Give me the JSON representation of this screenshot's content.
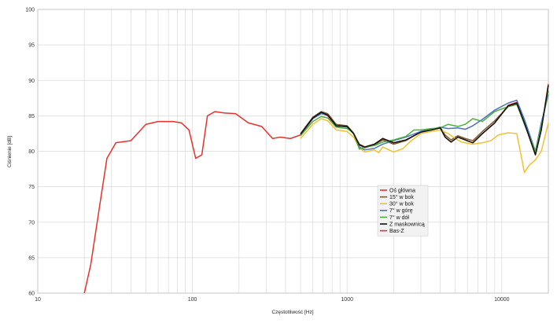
{
  "chart_data": {
    "type": "line",
    "xlabel": "Częstotliwość [Hz]",
    "ylabel": "Ciśnienie [dB]",
    "xscale": "log",
    "xlim": [
      10,
      20000
    ],
    "ylim": [
      60,
      100
    ],
    "x_ticks": [
      "10",
      "100",
      "1000",
      "10000"
    ],
    "y_ticks": [
      "60",
      "65",
      "70",
      "75",
      "80",
      "85",
      "90",
      "95",
      "100"
    ],
    "grid": true,
    "legend_position": "lower-right-center",
    "series": [
      {
        "name": "Oś główna",
        "color": "#e8312a",
        "points": [
          [
            20,
            60
          ],
          [
            22,
            64
          ],
          [
            25,
            72
          ],
          [
            28,
            79
          ],
          [
            32,
            81.2
          ],
          [
            40,
            81.5
          ],
          [
            50,
            83.8
          ],
          [
            60,
            84.2
          ],
          [
            75,
            84.2
          ],
          [
            85,
            84
          ],
          [
            95,
            83
          ],
          [
            105,
            79
          ],
          [
            115,
            79.5
          ],
          [
            125,
            85
          ],
          [
            140,
            85.6
          ],
          [
            160,
            85.4
          ],
          [
            190,
            85.3
          ],
          [
            230,
            84
          ],
          [
            280,
            83.5
          ],
          [
            330,
            81.8
          ],
          [
            370,
            82
          ],
          [
            430,
            81.8
          ],
          [
            500,
            82.3
          ],
          [
            600,
            84.6
          ],
          [
            680,
            85.4
          ],
          [
            750,
            85
          ],
          [
            850,
            83.5
          ],
          [
            1000,
            83.5
          ],
          [
            1100,
            82.5
          ],
          [
            1200,
            81
          ],
          [
            1300,
            80.6
          ],
          [
            1500,
            81
          ],
          [
            1700,
            81.8
          ],
          [
            2000,
            81.2
          ],
          [
            2400,
            81.6
          ],
          [
            3000,
            82.7
          ],
          [
            3500,
            83
          ],
          [
            4000,
            83.3
          ],
          [
            4300,
            82
          ],
          [
            4700,
            81.3
          ],
          [
            5200,
            82
          ],
          [
            5800,
            81.6
          ],
          [
            6500,
            81.2
          ],
          [
            7500,
            82.5
          ],
          [
            9000,
            84
          ],
          [
            11000,
            86.5
          ],
          [
            12500,
            86.9
          ],
          [
            14000,
            84
          ],
          [
            16500,
            79.5
          ],
          [
            18000,
            83
          ],
          [
            20000,
            89.5
          ]
        ]
      },
      {
        "name": "15° w bok",
        "color": "#7b5a2e",
        "points": [
          [
            500,
            82.5
          ],
          [
            600,
            84.8
          ],
          [
            680,
            85.6
          ],
          [
            750,
            85.3
          ],
          [
            850,
            83.8
          ],
          [
            1000,
            83.6
          ],
          [
            1100,
            82.6
          ],
          [
            1200,
            80.9
          ],
          [
            1300,
            80.5
          ],
          [
            1500,
            80.9
          ],
          [
            1700,
            81.6
          ],
          [
            2000,
            81
          ],
          [
            2400,
            81.5
          ],
          [
            3000,
            82.8
          ],
          [
            3500,
            83.1
          ],
          [
            4000,
            83.4
          ],
          [
            4300,
            82.3
          ],
          [
            4700,
            81.6
          ],
          [
            5200,
            82.2
          ],
          [
            5800,
            81.8
          ],
          [
            6500,
            81.5
          ],
          [
            7500,
            82.8
          ],
          [
            9000,
            84.3
          ],
          [
            11000,
            86.3
          ],
          [
            12500,
            86.6
          ],
          [
            14000,
            84
          ],
          [
            16500,
            80
          ],
          [
            18000,
            83.5
          ],
          [
            20000,
            88.5
          ]
        ]
      },
      {
        "name": "30° w bok",
        "color": "#f2c12e",
        "points": [
          [
            500,
            81.8
          ],
          [
            600,
            83.8
          ],
          [
            680,
            84.6
          ],
          [
            750,
            84.3
          ],
          [
            850,
            83
          ],
          [
            1000,
            82.8
          ],
          [
            1100,
            82
          ],
          [
            1200,
            80.5
          ],
          [
            1300,
            79.9
          ],
          [
            1500,
            80.2
          ],
          [
            1600,
            79.8
          ],
          [
            1700,
            80.6
          ],
          [
            2000,
            79.9
          ],
          [
            2300,
            80.4
          ],
          [
            2600,
            81.5
          ],
          [
            3000,
            82.5
          ],
          [
            3500,
            82.8
          ],
          [
            4000,
            83
          ],
          [
            4500,
            82.5
          ],
          [
            5000,
            81.8
          ],
          [
            5500,
            81.3
          ],
          [
            6500,
            81
          ],
          [
            7500,
            81.2
          ],
          [
            8500,
            81.5
          ],
          [
            9500,
            82.3
          ],
          [
            11000,
            82.6
          ],
          [
            12500,
            82.5
          ],
          [
            13500,
            78.8
          ],
          [
            14000,
            77
          ],
          [
            15000,
            78
          ],
          [
            16500,
            78.8
          ],
          [
            18000,
            80
          ],
          [
            20000,
            84
          ]
        ]
      },
      {
        "name": "7° w górę",
        "color": "#4c72c4",
        "points": [
          [
            500,
            82.4
          ],
          [
            600,
            84.6
          ],
          [
            680,
            85.3
          ],
          [
            750,
            85.1
          ],
          [
            850,
            83.6
          ],
          [
            1000,
            83.4
          ],
          [
            1100,
            82.5
          ],
          [
            1200,
            80.6
          ],
          [
            1300,
            80.2
          ],
          [
            1500,
            80.4
          ],
          [
            1700,
            81
          ],
          [
            2000,
            81.5
          ],
          [
            2400,
            82
          ],
          [
            3000,
            82.8
          ],
          [
            3500,
            83
          ],
          [
            4000,
            83.4
          ],
          [
            4500,
            83.2
          ],
          [
            5200,
            83.3
          ],
          [
            5800,
            83.1
          ],
          [
            6500,
            83.6
          ],
          [
            7500,
            84.5
          ],
          [
            9000,
            85.8
          ],
          [
            11000,
            86.8
          ],
          [
            12500,
            87.2
          ],
          [
            14000,
            84.5
          ],
          [
            16500,
            80
          ],
          [
            18000,
            84
          ],
          [
            20000,
            88
          ]
        ]
      },
      {
        "name": "7° w dół",
        "color": "#4caf3c",
        "points": [
          [
            500,
            82.2
          ],
          [
            600,
            84.2
          ],
          [
            680,
            84.9
          ],
          [
            750,
            84.7
          ],
          [
            850,
            83.4
          ],
          [
            1000,
            83.2
          ],
          [
            1100,
            82.6
          ],
          [
            1200,
            80.3
          ],
          [
            1300,
            80.6
          ],
          [
            1500,
            80.8
          ],
          [
            1700,
            81.3
          ],
          [
            2000,
            81.6
          ],
          [
            2400,
            82.1
          ],
          [
            2700,
            83
          ],
          [
            3000,
            83
          ],
          [
            3500,
            83.2
          ],
          [
            4000,
            83.3
          ],
          [
            4500,
            83.8
          ],
          [
            5200,
            83.5
          ],
          [
            5800,
            83.8
          ],
          [
            6500,
            84.6
          ],
          [
            7500,
            84.2
          ],
          [
            9000,
            85.6
          ],
          [
            11000,
            86.3
          ],
          [
            12500,
            86.7
          ],
          [
            14000,
            83.8
          ],
          [
            16500,
            80
          ],
          [
            18000,
            83.5
          ],
          [
            20000,
            88.5
          ]
        ]
      },
      {
        "name": "Z maskownicą",
        "color": "#111111",
        "points": [
          [
            500,
            82.4
          ],
          [
            600,
            84.7
          ],
          [
            680,
            85.5
          ],
          [
            750,
            85.1
          ],
          [
            850,
            83.6
          ],
          [
            1000,
            83.5
          ],
          [
            1100,
            82.5
          ],
          [
            1200,
            80.9
          ],
          [
            1300,
            80.6
          ],
          [
            1500,
            81
          ],
          [
            1700,
            81.8
          ],
          [
            2000,
            81.2
          ],
          [
            2400,
            81.6
          ],
          [
            3000,
            82.7
          ],
          [
            3500,
            83
          ],
          [
            4000,
            83.3
          ],
          [
            4300,
            82
          ],
          [
            4700,
            81.3
          ],
          [
            5200,
            82
          ],
          [
            5800,
            81.6
          ],
          [
            6500,
            81.2
          ],
          [
            7500,
            82.5
          ],
          [
            9000,
            84
          ],
          [
            11000,
            86.4
          ],
          [
            12500,
            86.8
          ],
          [
            14000,
            84
          ],
          [
            16500,
            79.5
          ],
          [
            18000,
            83
          ],
          [
            20000,
            89.3
          ]
        ]
      },
      {
        "name": "Bas-Z",
        "color": "#e8312a",
        "points": []
      }
    ]
  }
}
